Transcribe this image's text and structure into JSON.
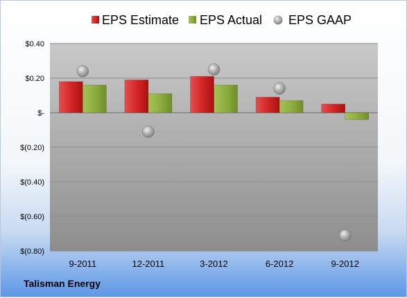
{
  "company": "Talisman Energy",
  "chart_data": {
    "type": "bar",
    "categories": [
      "9-2011",
      "12-2011",
      "3-2012",
      "6-2012",
      "9-2012"
    ],
    "series": [
      {
        "name": "EPS Estimate",
        "kind": "bar",
        "color": "#cc1f1f",
        "values": [
          0.18,
          0.19,
          0.21,
          0.09,
          0.05
        ]
      },
      {
        "name": "EPS Actual",
        "kind": "bar",
        "color": "#8aaa3a",
        "values": [
          0.16,
          0.11,
          0.16,
          0.07,
          -0.04
        ]
      },
      {
        "name": "EPS GAAP",
        "kind": "point",
        "color": "#a8a8a8",
        "values": [
          0.24,
          -0.11,
          0.25,
          0.14,
          -0.71
        ]
      }
    ],
    "yticks": [
      0.4,
      0.2,
      0,
      -0.2,
      -0.4,
      -0.6,
      -0.8
    ],
    "ytick_labels": [
      "$0.40",
      "$0.20",
      "$-",
      "$(0.20)",
      "$(0.40)",
      "$(0.60)",
      "$(0.80)"
    ],
    "ylim": [
      -0.8,
      0.4
    ],
    "grid": true,
    "legend": "top"
  }
}
